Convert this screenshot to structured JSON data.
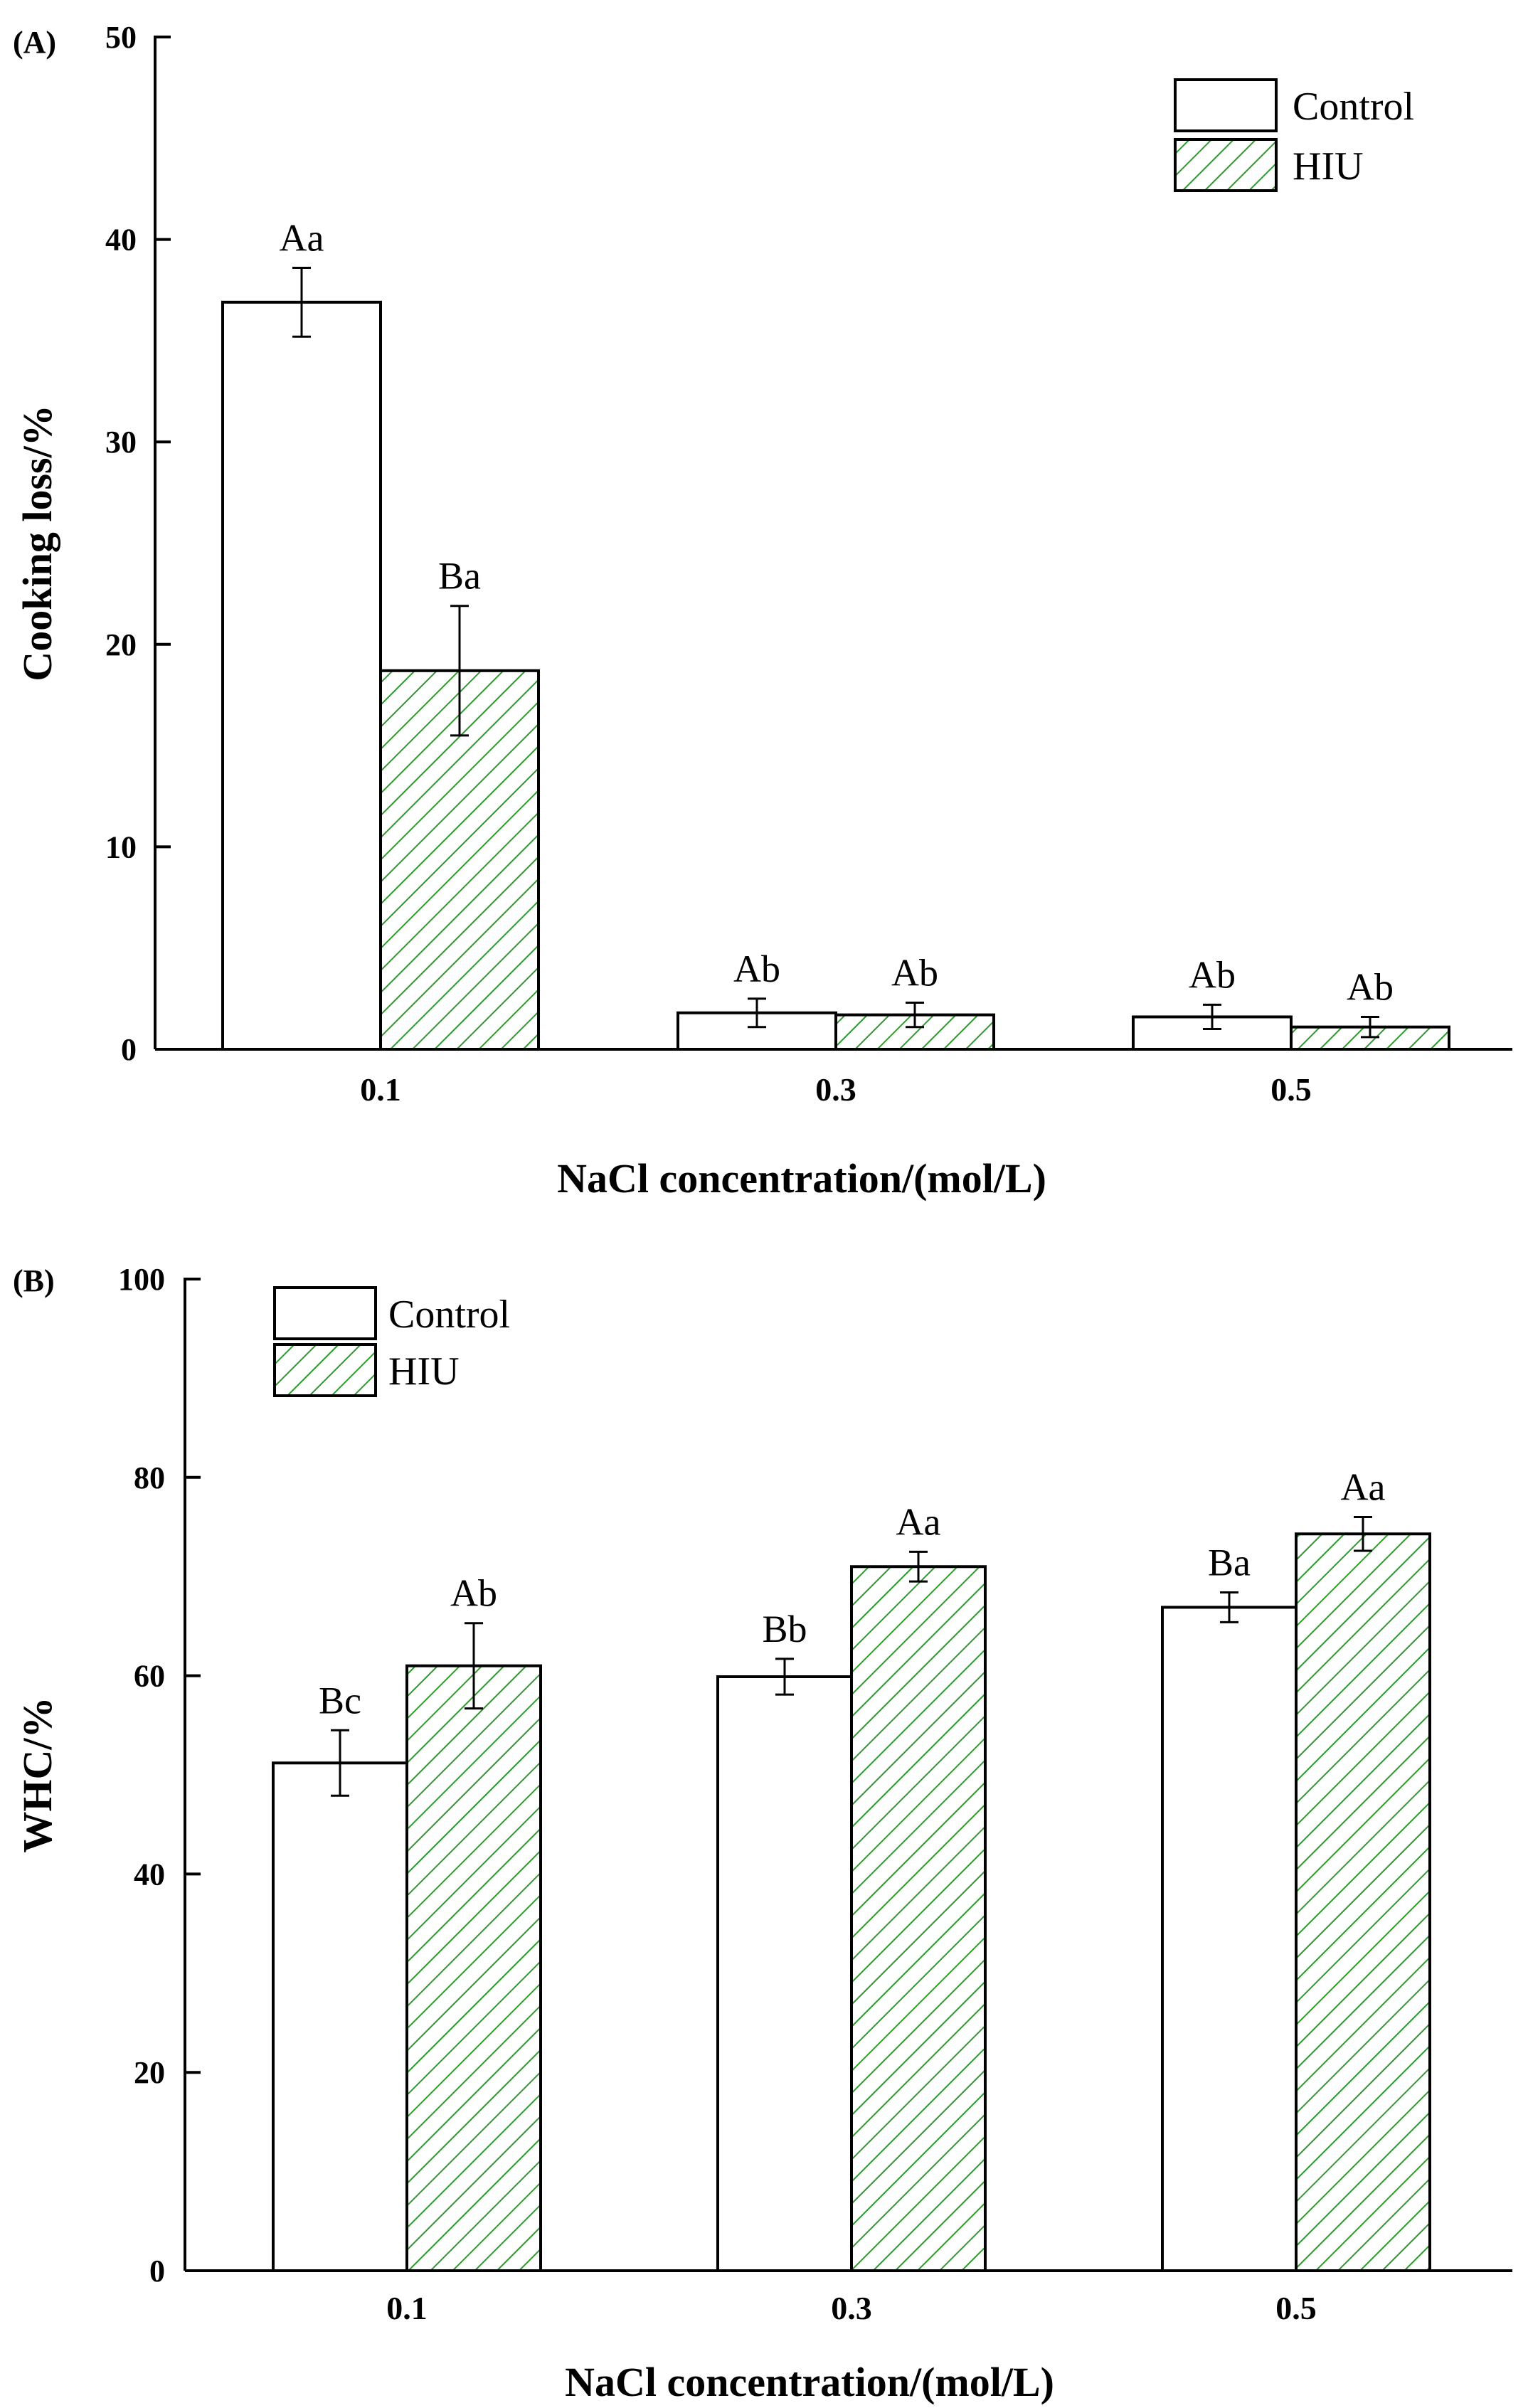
{
  "chart_data": [
    {
      "panel": "(A)",
      "type": "bar",
      "categories": [
        "0.1",
        "0.3",
        "0.5"
      ],
      "series": [
        {
          "name": "Control",
          "values": [
            36.9,
            1.8,
            1.6
          ],
          "errors": [
            1.7,
            0.7,
            0.6
          ],
          "labels": [
            "Aa",
            "Ab",
            "Ab"
          ]
        },
        {
          "name": "HIU",
          "values": [
            18.7,
            1.7,
            1.1
          ],
          "errors": [
            3.2,
            0.6,
            0.5
          ],
          "labels": [
            "Ba",
            "Ab",
            "Ab"
          ]
        }
      ],
      "xlabel": "NaCl concentration/(mol/L)",
      "ylabel": "Cooking loss/%",
      "ylim": [
        0,
        50
      ],
      "yticks": [
        "0",
        "10",
        "20",
        "30",
        "40",
        "50"
      ],
      "legend": "top-right"
    },
    {
      "panel": "(B)",
      "type": "bar",
      "categories": [
        "0.1",
        "0.3",
        "0.5"
      ],
      "series": [
        {
          "name": "Control",
          "values": [
            51.2,
            59.9,
            66.9
          ],
          "errors": [
            3.3,
            1.8,
            1.5
          ],
          "labels": [
            "Bc",
            "Bb",
            "Ba"
          ]
        },
        {
          "name": "HIU",
          "values": [
            61.0,
            71.0,
            74.3
          ],
          "errors": [
            4.3,
            1.5,
            1.7
          ],
          "labels": [
            "Ab",
            "Aa",
            "Aa"
          ]
        }
      ],
      "xlabel": "NaCl concentration/(mol/L)",
      "ylabel": "WHC/%",
      "ylim": [
        0,
        100
      ],
      "yticks": [
        "0",
        "20",
        "40",
        "60",
        "80",
        "100"
      ],
      "legend": "top-left"
    }
  ],
  "colors": {
    "control_fill": "#ffffff",
    "hiu_hatch": "#2e9a2e",
    "axis": "#000000"
  }
}
